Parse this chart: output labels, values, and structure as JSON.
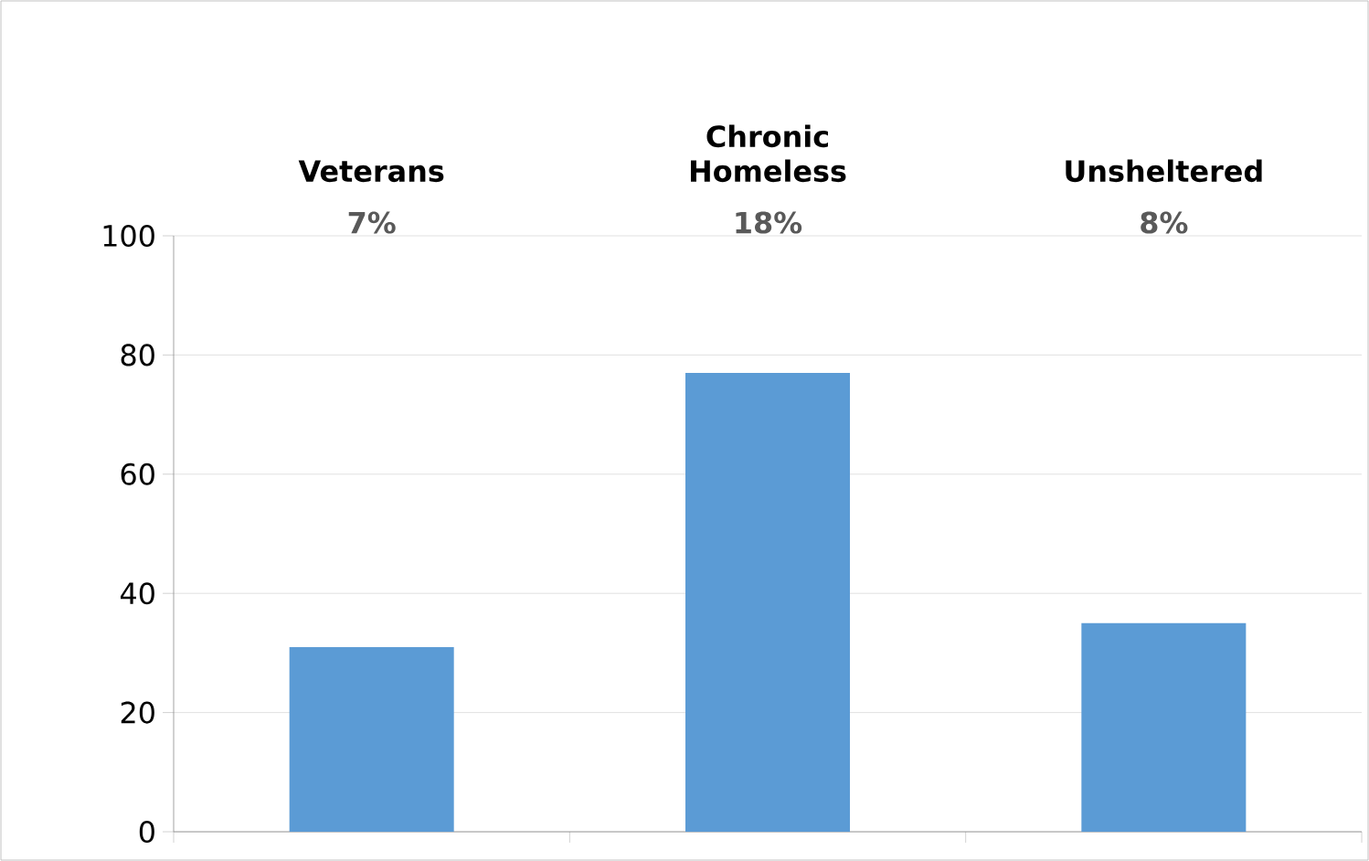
{
  "chart_data": {
    "type": "bar",
    "categories": [
      "Veterans",
      "Chronic Homeless",
      "Unsheltered"
    ],
    "values": [
      31,
      77,
      35
    ],
    "color": "#5b9bd5",
    "ylim": [
      0,
      100
    ],
    "yticks": [
      0,
      20,
      40,
      60,
      80,
      100
    ],
    "grid": "y",
    "annotations": [
      "7%",
      "18%",
      "8%"
    ]
  }
}
